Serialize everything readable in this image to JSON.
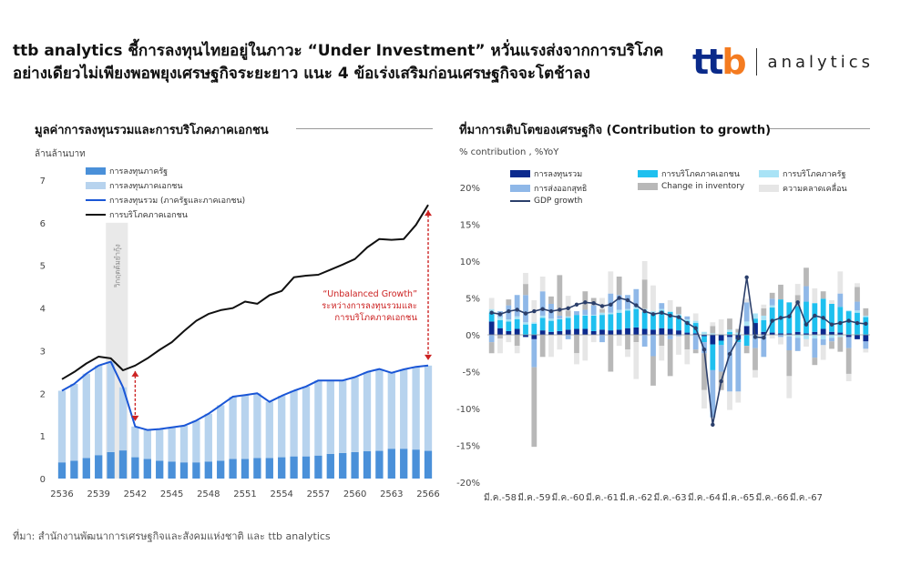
{
  "headline": "ttb analytics ชี้การลงทุนไทยอยู่ในภาวะ “Under Investment” หวั่นแรงส่งจากการบริโภคอย่างเดียวไม่เพียงพอพยุงเศรษฐกิจระยะยาว แนะ 4 ข้อเร่งเสริมก่อนเศรษฐกิจจะโตช้าลง",
  "brand": {
    "logo": "ttb",
    "word": "analytics"
  },
  "source": "ที่มา: สำนักงานพัฒนาการเศรษฐกิจและสังคมแห่งชาติ และ ttb analytics",
  "colors": {
    "dark_blue": "#0c2a8e",
    "mid_blue": "#4a90d9",
    "light_blue": "#b7d3ee",
    "line_blue": "#1a56d6",
    "cyan": "#1ec0ef",
    "light_cyan": "#a9e3f6",
    "gray": "#b8b8b8",
    "light_gray": "#e6e6e6",
    "gdp": "#2b3f6b",
    "red": "#cc2222"
  },
  "chart_data": [
    {
      "type": "bar",
      "title": "มูลค่าการลงทุนรวมและการบริโภคภาคเอกชน",
      "ylabel": "ล้านล้านบาท",
      "ylim": [
        0,
        7
      ],
      "yticks": [
        "0",
        "1",
        "2",
        "3",
        "4",
        "5",
        "6",
        "7"
      ],
      "xticks": [
        "2536",
        "2539",
        "2542",
        "2545",
        "2548",
        "2551",
        "2554",
        "2557",
        "2560",
        "2563",
        "2566"
      ],
      "x": [
        2536,
        2537,
        2538,
        2539,
        2540,
        2541,
        2542,
        2543,
        2544,
        2545,
        2546,
        2547,
        2548,
        2549,
        2550,
        2551,
        2552,
        2553,
        2554,
        2555,
        2556,
        2557,
        2558,
        2559,
        2560,
        2561,
        2562,
        2563,
        2564,
        2565,
        2566
      ],
      "series": [
        {
          "name": "การลงทุนภาครัฐ",
          "values": [
            0.38,
            0.42,
            0.48,
            0.55,
            0.62,
            0.66,
            0.5,
            0.46,
            0.42,
            0.4,
            0.38,
            0.38,
            0.4,
            0.42,
            0.46,
            0.46,
            0.48,
            0.48,
            0.5,
            0.52,
            0.52,
            0.54,
            0.58,
            0.6,
            0.62,
            0.64,
            0.65,
            0.7,
            0.7,
            0.68,
            0.65
          ]
        },
        {
          "name": "การลงทุนภาคเอกชน",
          "values": [
            1.68,
            1.8,
            1.98,
            2.1,
            2.12,
            1.48,
            0.72,
            0.68,
            0.74,
            0.8,
            0.86,
            0.98,
            1.12,
            1.3,
            1.46,
            1.5,
            1.52,
            1.32,
            1.44,
            1.54,
            1.64,
            1.76,
            1.72,
            1.7,
            1.76,
            1.86,
            1.92,
            1.78,
            1.86,
            1.94,
            2.0
          ]
        },
        {
          "name": "การลงทุนรวม (ภาครัฐและภาคเอกชน)",
          "values": [
            2.06,
            2.22,
            2.46,
            2.65,
            2.74,
            2.14,
            1.22,
            1.14,
            1.16,
            1.2,
            1.24,
            1.36,
            1.52,
            1.72,
            1.92,
            1.96,
            2.0,
            1.8,
            1.94,
            2.06,
            2.16,
            2.3,
            2.3,
            2.3,
            2.38,
            2.5,
            2.57,
            2.48,
            2.56,
            2.62,
            2.65
          ]
        },
        {
          "name": "การบริโภคภาคเอกชน",
          "values": [
            2.33,
            2.5,
            2.7,
            2.86,
            2.82,
            2.54,
            2.65,
            2.82,
            3.02,
            3.2,
            3.46,
            3.7,
            3.86,
            3.95,
            4.0,
            4.15,
            4.1,
            4.3,
            4.4,
            4.72,
            4.76,
            4.78,
            4.9,
            5.02,
            5.15,
            5.42,
            5.62,
            5.6,
            5.62,
            5.95,
            6.42
          ]
        }
      ],
      "shaded_label": "วิกฤตต้มยำกุ้ง",
      "annotation": [
        "“Unbalanced Growth”",
        "ระหว่างการลงทุนรวมและ",
        "การบริโภคภาคเอกชน"
      ],
      "legend_position": "top-left"
    },
    {
      "type": "bar",
      "title": "ที่มาการเติบโตของเศรษฐกิจ (Contribution to growth)",
      "ylabel": "% contribution , %YoY",
      "ylim": [
        -20,
        20
      ],
      "yticks": [
        "-20%",
        "-15%",
        "-10%",
        "-5%",
        "0%",
        "5%",
        "10%",
        "15%",
        "20%"
      ],
      "xticks": [
        "มี.ค.-58",
        "มี.ค.-59",
        "มี.ค.-60",
        "มี.ค.-61",
        "มี.ค.-62",
        "มี.ค.-63",
        "มี.ค.-64",
        "มี.ค.-65",
        "มี.ค.-66",
        "มี.ค.-67"
      ],
      "series": [
        {
          "name": "การลงทุนรวม",
          "values": [
            1.8,
            0.9,
            0.5,
            0.8,
            -0.3,
            -0.6,
            0.6,
            0.4,
            0.5,
            0.7,
            0.8,
            0.8,
            0.5,
            0.7,
            0.6,
            0.7,
            0.9,
            1.0,
            0.8,
            0.7,
            0.9,
            0.8,
            0.6,
            0.3,
            0.2,
            -0.2,
            -1.3,
            -0.8,
            -0.3,
            -0.6,
            1.2,
            1.6,
            0.4,
            0.3,
            0.2,
            0.2,
            0.4,
            0.2,
            0.4,
            0.8,
            0.4,
            0.3,
            -0.3,
            -0.6,
            -0.9
          ]
        },
        {
          "name": "การบริโภคภาคเอกชน",
          "values": [
            1.2,
            1.1,
            1.3,
            1.3,
            1.4,
            1.5,
            1.7,
            1.5,
            1.6,
            1.6,
            1.9,
            1.8,
            2.1,
            2.0,
            2.2,
            2.3,
            2.4,
            2.5,
            2.3,
            2.2,
            2.4,
            2.3,
            2.0,
            1.6,
            1.4,
            -0.8,
            -3.5,
            -0.6,
            0.4,
            -0.4,
            -1.5,
            0.6,
            1.6,
            3.4,
            4.6,
            4.2,
            3.5,
            4.3,
            3.9,
            4.1,
            3.8,
            3.5,
            3.2,
            3.0,
            2.4
          ]
        },
        {
          "name": "การบริโภคภาครัฐ",
          "values": [
            0.5,
            0.4,
            0.3,
            0.4,
            0.3,
            0.2,
            0.3,
            0.3,
            0.1,
            0.2,
            0.0,
            0.1,
            0.1,
            0.3,
            0.2,
            0.4,
            0.2,
            0.3,
            0.4,
            0.3,
            0.2,
            0.1,
            0.2,
            0.2,
            0.3,
            0.4,
            0.2,
            0.1,
            0.3,
            0.3,
            0.6,
            0.7,
            0.6,
            0.3,
            0.0,
            -0.2,
            -0.4,
            -0.6,
            -0.5,
            -0.6,
            -0.4,
            -0.3,
            0.1,
            0.3,
            0.2
          ]
        },
        {
          "name": "การส่งออกสุทธิ",
          "values": [
            -1.0,
            0.8,
            1.9,
            2.9,
            3.7,
            -3.8,
            3.3,
            2.0,
            0.4,
            -0.6,
            0.5,
            0.7,
            1.3,
            -1.0,
            2.6,
            2.0,
            1.9,
            2.4,
            -1.6,
            -2.9,
            0.8,
            -0.6,
            -0.2,
            0.4,
            -2.0,
            -1.5,
            -6.4,
            -3.6,
            -7.4,
            -6.7,
            2.6,
            -1.8,
            -3.0,
            0.9,
            -0.3,
            -1.9,
            -1.8,
            2.1,
            -2.6,
            -0.8,
            -0.5,
            1.8,
            -1.5,
            1.2,
            -1.0
          ]
        },
        {
          "name": "Change in inventory",
          "values": [
            -1.5,
            -0.5,
            0.8,
            -1.5,
            1.5,
            -10.8,
            -3.0,
            1.0,
            5.5,
            0.8,
            -2.5,
            2.5,
            1.0,
            0.5,
            -5.0,
            2.5,
            -2.0,
            -1.0,
            4.0,
            -4.0,
            -1.5,
            -5.0,
            1.0,
            -2.0,
            -0.5,
            -5.0,
            1.0,
            -2.5,
            1.5,
            0.5,
            -1.0,
            -3.0,
            1.0,
            0.8,
            2.0,
            -3.5,
            1.5,
            2.5,
            -1.0,
            1.0,
            -1.0,
            -2.0,
            -3.5,
            2.0,
            1.0
          ]
        },
        {
          "name": "ความคลาดเคลื่อน",
          "values": [
            1.5,
            -2.0,
            -1.0,
            -1.0,
            1.5,
            3.0,
            2.0,
            -3.0,
            -2.0,
            2.0,
            -1.5,
            -3.5,
            -1.0,
            1.5,
            3.0,
            -1.5,
            -1.0,
            -5.0,
            2.5,
            3.5,
            -2.0,
            1.5,
            -2.5,
            -2.0,
            1.0,
            -2.5,
            0.5,
            2.0,
            -2.5,
            -1.5,
            0.5,
            -1.0,
            0.5,
            -0.5,
            -1.0,
            -3.0,
            1.5,
            -1.0,
            2.0,
            -2.0,
            0.5,
            3.0,
            -1.0,
            0.5,
            -0.5
          ]
        },
        {
          "name": "GDP growth",
          "values": [
            3.0,
            2.8,
            3.2,
            3.4,
            2.9,
            3.2,
            3.5,
            3.2,
            3.4,
            3.6,
            4.1,
            4.4,
            4.3,
            3.9,
            4.1,
            5.0,
            4.7,
            4.0,
            3.2,
            2.8,
            3.0,
            2.6,
            2.4,
            1.6,
            0.9,
            -2.0,
            -12.2,
            -6.3,
            -2.6,
            -0.5,
            7.8,
            -0.3,
            -0.4,
            1.9,
            2.3,
            2.5,
            4.4,
            1.4,
            2.6,
            2.3,
            1.4,
            1.6,
            1.9,
            1.6,
            1.5
          ]
        }
      ],
      "legend_position": "top"
    }
  ]
}
